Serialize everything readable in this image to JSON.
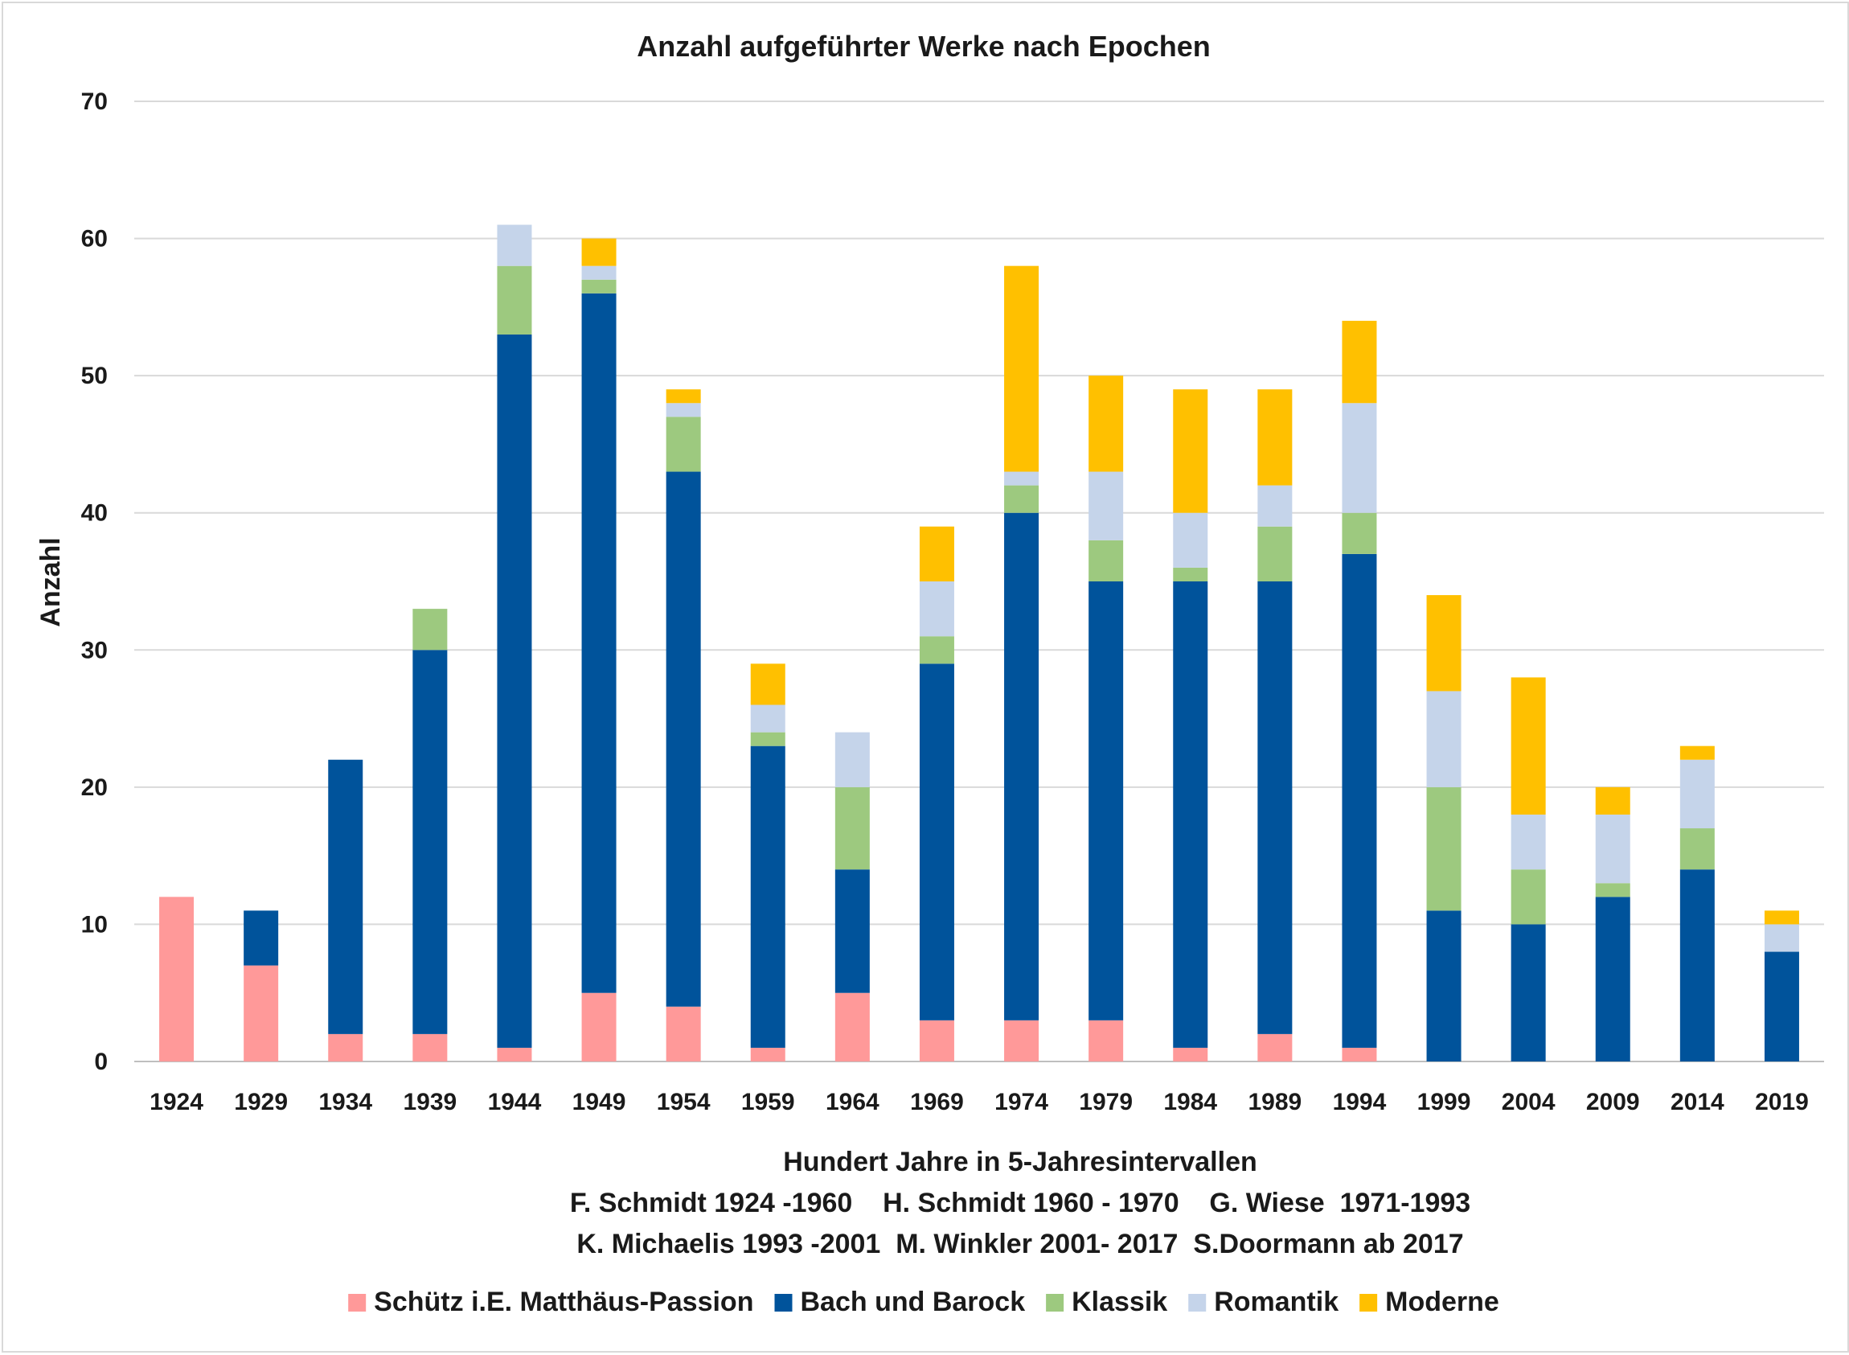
{
  "chart_data": {
    "type": "bar",
    "stacked": true,
    "title": "Anzahl aufgeführter Werke nach Epochen",
    "ylabel": "Anzahl",
    "xlabel": "Hundert Jahre in 5-Jahresintervallen",
    "subtitle_lines": [
      "F. Schmidt 1924 -1960    H. Schmidt 1960 - 1970    G. Wiese  1971-1993",
      "K. Michaelis 1993 -2001  M. Winkler 2001- 2017  S.Doormann ab 2017"
    ],
    "ylim": [
      0,
      70
    ],
    "yticks": [
      0,
      10,
      20,
      30,
      40,
      50,
      60,
      70
    ],
    "grid": true,
    "legend_position": "bottom",
    "categories": [
      "1924",
      "1929",
      "1934",
      "1939",
      "1944",
      "1949",
      "1954",
      "1959",
      "1964",
      "1969",
      "1974",
      "1979",
      "1984",
      "1989",
      "1994",
      "1999",
      "2004",
      "2009",
      "2014",
      "2019"
    ],
    "series": [
      {
        "name": "Schütz i.E. Matthäus-Passion",
        "color": "#ff9999",
        "values": [
          12,
          7,
          2,
          2,
          1,
          5,
          4,
          1,
          5,
          3,
          3,
          3,
          1,
          2,
          1,
          0,
          0,
          0,
          0,
          0
        ]
      },
      {
        "name": "Bach und Barock",
        "color": "#00539b",
        "values": [
          0,
          4,
          20,
          28,
          52,
          51,
          39,
          22,
          9,
          26,
          37,
          32,
          34,
          33,
          36,
          11,
          10,
          12,
          14,
          8
        ]
      },
      {
        "name": "Klassik",
        "color": "#9dc97f",
        "values": [
          0,
          0,
          0,
          3,
          5,
          1,
          4,
          1,
          6,
          2,
          2,
          3,
          1,
          4,
          3,
          9,
          4,
          1,
          3,
          0
        ]
      },
      {
        "name": "Romantik",
        "color": "#c5d4ea",
        "values": [
          0,
          0,
          0,
          0,
          3,
          1,
          1,
          2,
          4,
          4,
          1,
          5,
          4,
          3,
          8,
          7,
          4,
          5,
          5,
          2
        ]
      },
      {
        "name": "Moderne",
        "color": "#ffc000",
        "values": [
          0,
          0,
          0,
          0,
          0,
          2,
          1,
          3,
          0,
          4,
          15,
          7,
          9,
          7,
          6,
          7,
          10,
          2,
          1,
          1
        ]
      }
    ]
  }
}
